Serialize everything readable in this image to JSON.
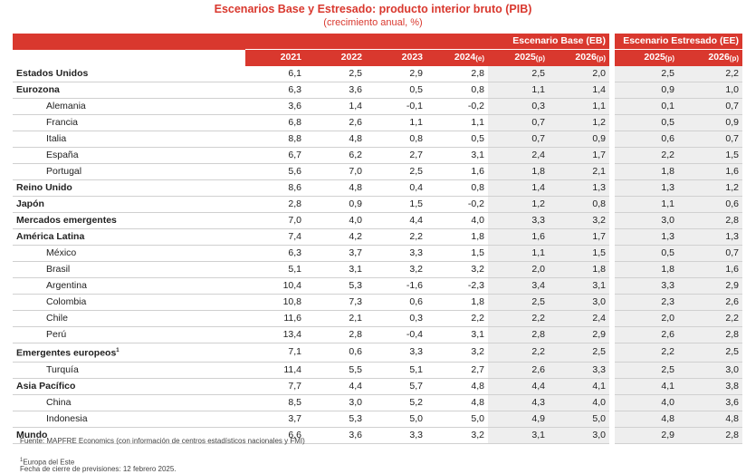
{
  "title": "Escenarios Base y Estresado: producto interior bruto (PIB)",
  "subtitle": "(crecimiento anual, %)",
  "headers": {
    "base_group": "Escenario Base (EB)",
    "stress_group": "Escenario Estresado (EE)",
    "years": [
      "2021",
      "2022",
      "2023",
      "2024",
      "2025",
      "2026"
    ],
    "year_suffixes": [
      "",
      "",
      "",
      "(e)",
      "(p)",
      "(p)"
    ],
    "stress_years": [
      "2025",
      "2026"
    ],
    "stress_suffixes": [
      "(p)",
      "(p)"
    ]
  },
  "rows": [
    {
      "name": "Estados Unidos",
      "level": 0,
      "vals": [
        "6,1",
        "2,5",
        "2,9",
        "2,8",
        "2,5",
        "2,0",
        "2,5",
        "2,2"
      ]
    },
    {
      "name": "Eurozona",
      "level": 0,
      "vals": [
        "6,3",
        "3,6",
        "0,5",
        "0,8",
        "1,1",
        "1,4",
        "0,9",
        "1,0"
      ]
    },
    {
      "name": "Alemania",
      "level": 1,
      "vals": [
        "3,6",
        "1,4",
        "-0,1",
        "-0,2",
        "0,3",
        "1,1",
        "0,1",
        "0,7"
      ]
    },
    {
      "name": "Francia",
      "level": 1,
      "vals": [
        "6,8",
        "2,6",
        "1,1",
        "1,1",
        "0,7",
        "1,2",
        "0,5",
        "0,9"
      ]
    },
    {
      "name": "Italia",
      "level": 1,
      "vals": [
        "8,8",
        "4,8",
        "0,8",
        "0,5",
        "0,7",
        "0,9",
        "0,6",
        "0,7"
      ]
    },
    {
      "name": "España",
      "level": 1,
      "vals": [
        "6,7",
        "6,2",
        "2,7",
        "3,1",
        "2,4",
        "1,7",
        "2,2",
        "1,5"
      ]
    },
    {
      "name": "Portugal",
      "level": 1,
      "vals": [
        "5,6",
        "7,0",
        "2,5",
        "1,6",
        "1,8",
        "2,1",
        "1,8",
        "1,6"
      ]
    },
    {
      "name": "Reino Unido",
      "level": 0,
      "vals": [
        "8,6",
        "4,8",
        "0,4",
        "0,8",
        "1,4",
        "1,3",
        "1,3",
        "1,2"
      ]
    },
    {
      "name": "Japón",
      "level": 0,
      "vals": [
        "2,8",
        "0,9",
        "1,5",
        "-0,2",
        "1,2",
        "0,8",
        "1,1",
        "0,6"
      ]
    },
    {
      "name": "Mercados emergentes",
      "level": 0,
      "vals": [
        "7,0",
        "4,0",
        "4,4",
        "4,0",
        "3,3",
        "3,2",
        "3,0",
        "2,8"
      ]
    },
    {
      "name": "América Latina",
      "level": 0,
      "vals": [
        "7,4",
        "4,2",
        "2,2",
        "1,8",
        "1,6",
        "1,7",
        "1,3",
        "1,3"
      ]
    },
    {
      "name": "México",
      "level": 1,
      "vals": [
        "6,3",
        "3,7",
        "3,3",
        "1,5",
        "1,1",
        "1,5",
        "0,5",
        "0,7"
      ]
    },
    {
      "name": "Brasil",
      "level": 1,
      "vals": [
        "5,1",
        "3,1",
        "3,2",
        "3,2",
        "2,0",
        "1,8",
        "1,8",
        "1,6"
      ]
    },
    {
      "name": "Argentina",
      "level": 1,
      "vals": [
        "10,4",
        "5,3",
        "-1,6",
        "-2,3",
        "3,4",
        "3,1",
        "3,3",
        "2,9"
      ]
    },
    {
      "name": "Colombia",
      "level": 1,
      "vals": [
        "10,8",
        "7,3",
        "0,6",
        "1,8",
        "2,5",
        "3,0",
        "2,3",
        "2,6"
      ]
    },
    {
      "name": "Chile",
      "level": 1,
      "vals": [
        "11,6",
        "2,1",
        "0,3",
        "2,2",
        "2,2",
        "2,4",
        "2,0",
        "2,2"
      ]
    },
    {
      "name": "Perú",
      "level": 1,
      "vals": [
        "13,4",
        "2,8",
        "-0,4",
        "3,1",
        "2,8",
        "2,9",
        "2,6",
        "2,8"
      ]
    },
    {
      "name": "Emergentes europeos",
      "level": 0,
      "sup": "1",
      "vals": [
        "7,1",
        "0,6",
        "3,3",
        "3,2",
        "2,2",
        "2,5",
        "2,2",
        "2,5"
      ]
    },
    {
      "name": "Turquía",
      "level": 1,
      "vals": [
        "11,4",
        "5,5",
        "5,1",
        "2,7",
        "2,6",
        "3,3",
        "2,5",
        "3,0"
      ]
    },
    {
      "name": "Asia Pacífico",
      "level": 0,
      "vals": [
        "7,7",
        "4,4",
        "5,7",
        "4,8",
        "4,4",
        "4,1",
        "4,1",
        "3,8"
      ]
    },
    {
      "name": "China",
      "level": 1,
      "vals": [
        "8,5",
        "3,0",
        "5,2",
        "4,8",
        "4,3",
        "4,0",
        "4,0",
        "3,6"
      ]
    },
    {
      "name": "Indonesia",
      "level": 1,
      "vals": [
        "3,7",
        "5,3",
        "5,0",
        "5,0",
        "4,9",
        "5,0",
        "4,8",
        "4,8"
      ]
    },
    {
      "name": "Mundo",
      "level": 0,
      "vals": [
        "6,6",
        "3,6",
        "3,3",
        "3,2",
        "3,1",
        "3,0",
        "2,9",
        "2,8"
      ]
    }
  ],
  "footer": {
    "source": "Fuente: MAPFRE Economics (con información de centros estadísticos nacionales y FMI)",
    "note_marker": "1",
    "note": "Europa del Este",
    "cutoff": "Fecha de cierre de previsiones: 12 febrero 2025."
  },
  "colors": {
    "accent": "#d9382e",
    "shade": "#eeeeee"
  }
}
